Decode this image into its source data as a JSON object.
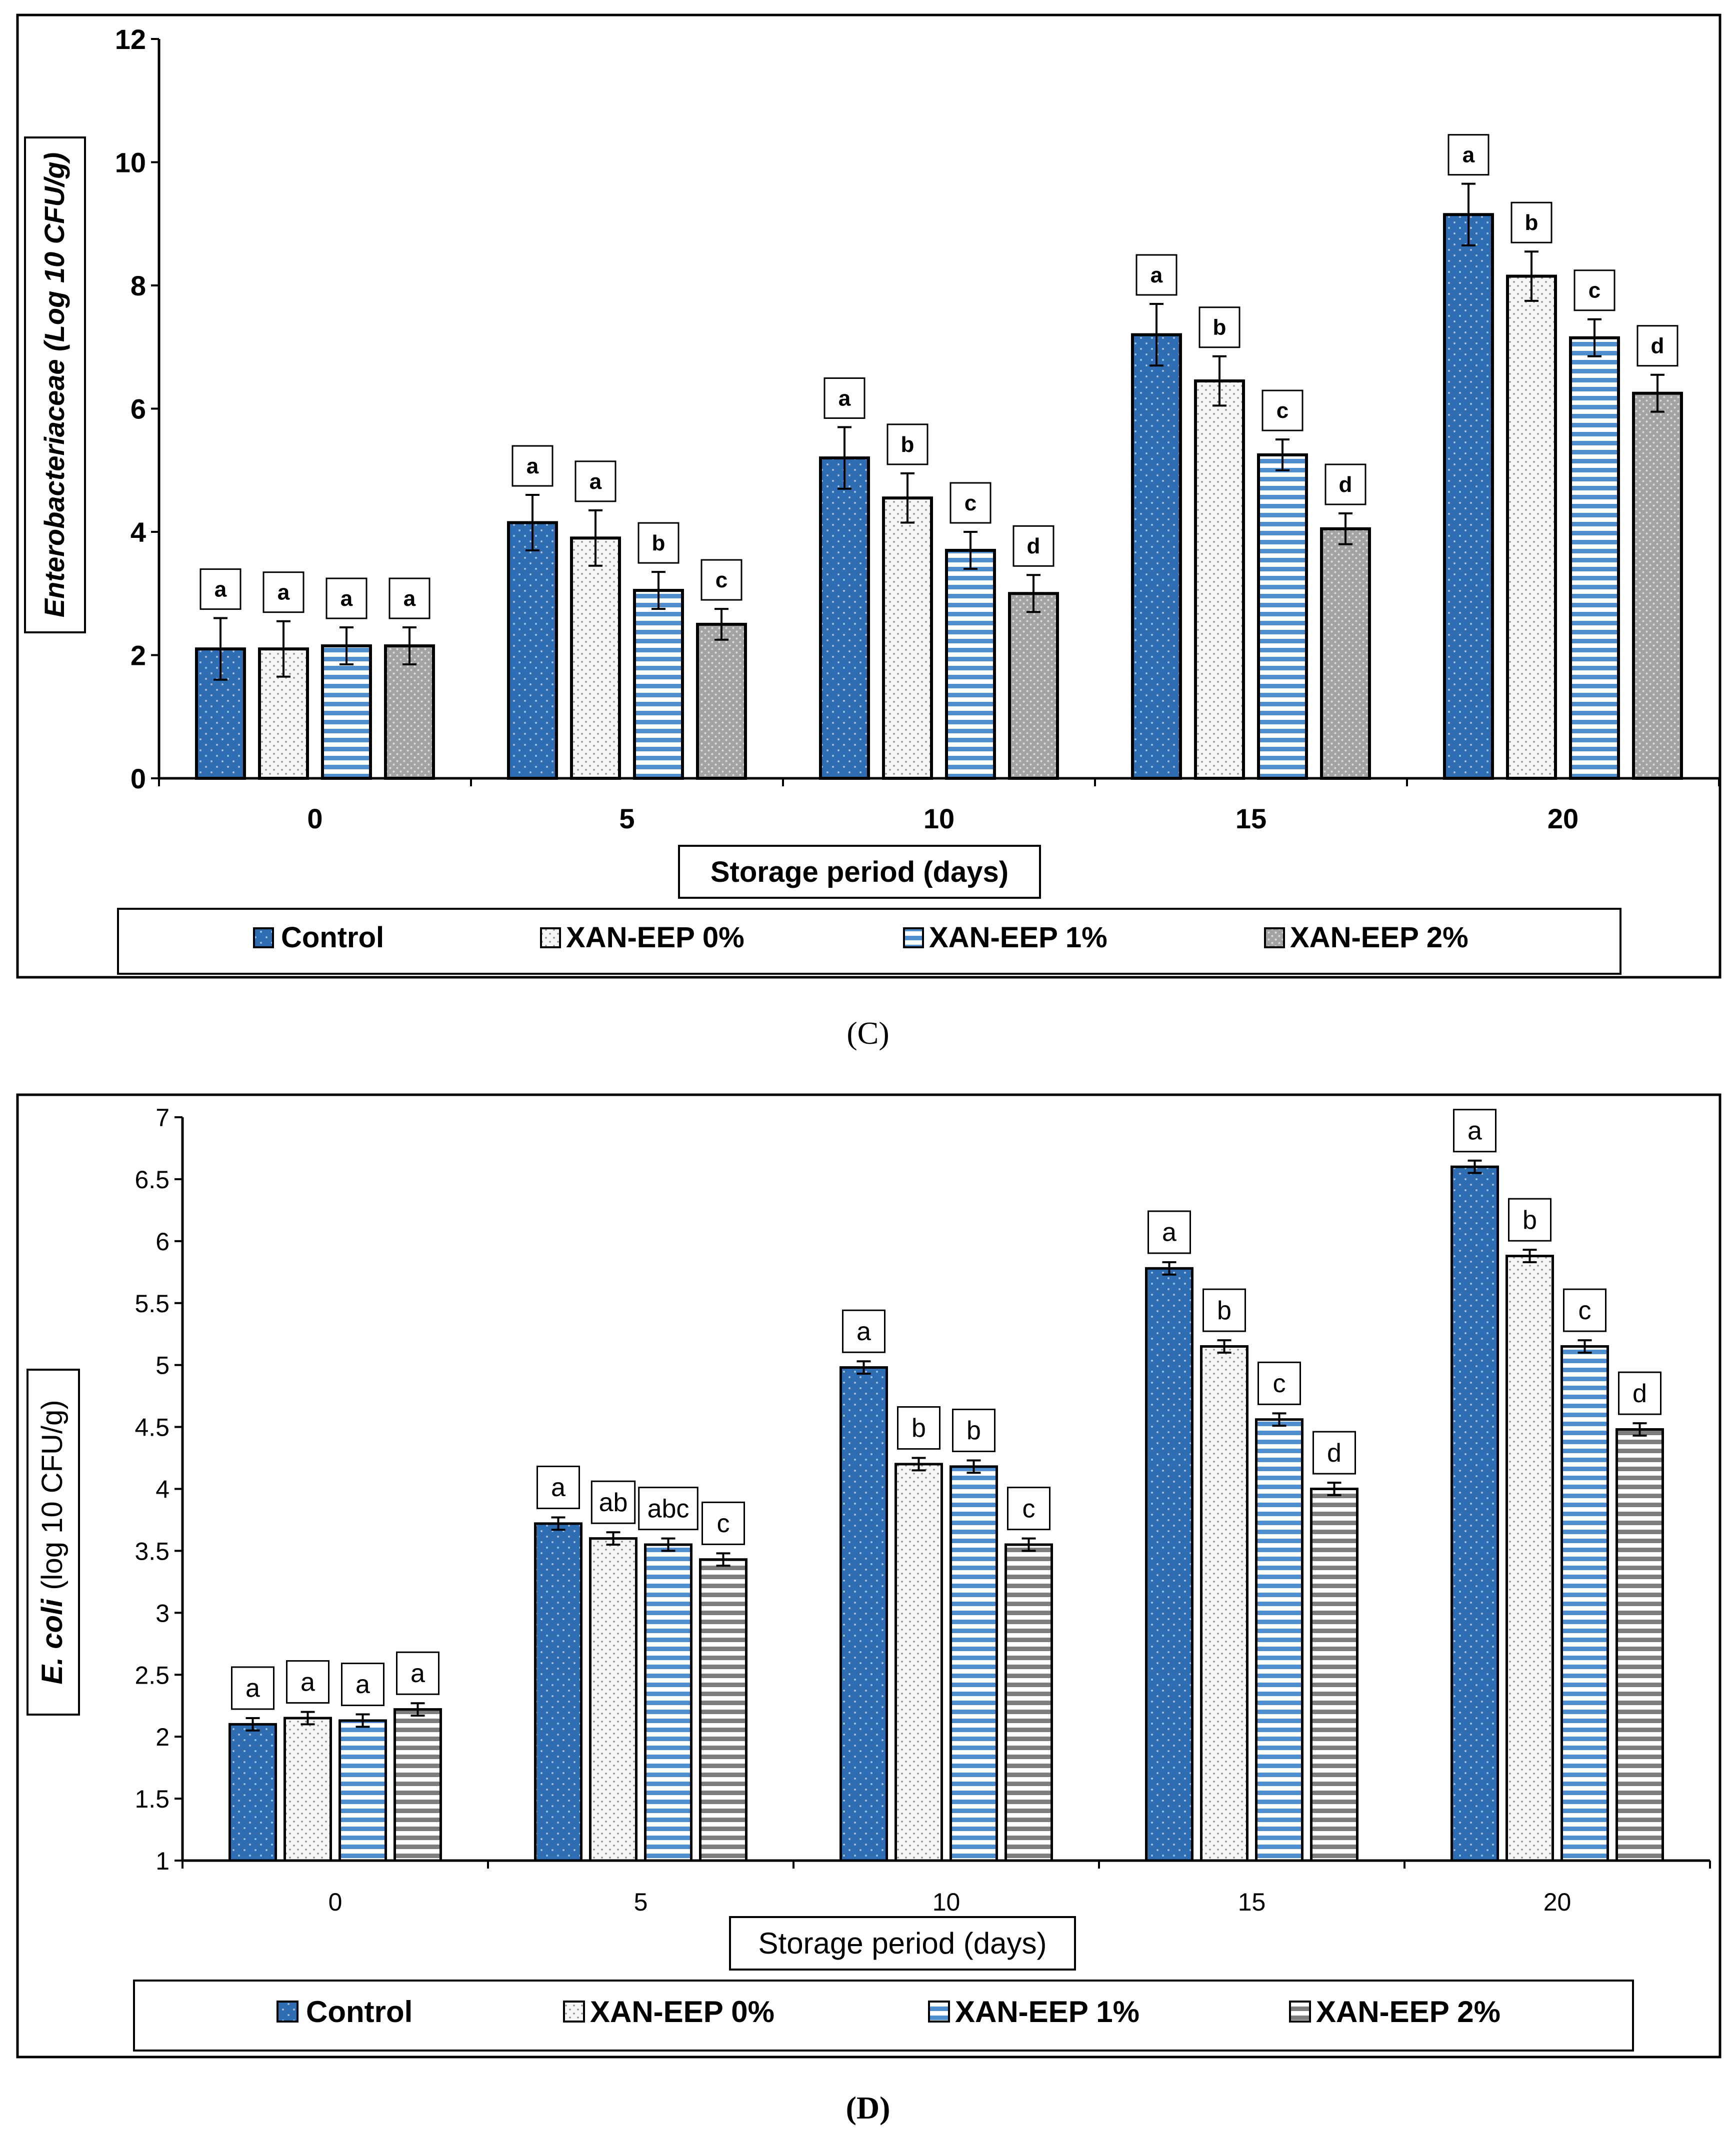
{
  "colors": {
    "control": "#2f6db3",
    "control_dark": "#1b3f6b",
    "xan0": "#f3f3f3",
    "xan1": "#4f8fd0",
    "xan2": "#9c9c9c",
    "axis": "#000000"
  },
  "chart_data": [
    {
      "type": "bar",
      "panel_label": "(C)",
      "ylabel": "Enterobacteriaceae (Log 10 CFU/g)",
      "xlabel": "Storage period (days)",
      "categories": [
        "0",
        "5",
        "10",
        "15",
        "20"
      ],
      "ylim": [
        0,
        12
      ],
      "yticks": [
        "0",
        "2",
        "4",
        "6",
        "8",
        "10",
        "12"
      ],
      "series": [
        {
          "name": "Control",
          "values": [
            2.1,
            4.15,
            5.2,
            7.2,
            9.15
          ],
          "errors": [
            0.5,
            0.45,
            0.5,
            0.5,
            0.5
          ],
          "letters": [
            "a",
            "a",
            "a",
            "a",
            "a"
          ]
        },
        {
          "name": "XAN-EEP 0%",
          "values": [
            2.1,
            3.9,
            4.55,
            6.45,
            8.15
          ],
          "errors": [
            0.45,
            0.45,
            0.4,
            0.4,
            0.4
          ],
          "letters": [
            "a",
            "a",
            "b",
            "b",
            "b"
          ]
        },
        {
          "name": "XAN-EEP 1%",
          "values": [
            2.15,
            3.05,
            3.7,
            5.25,
            7.15
          ],
          "errors": [
            0.3,
            0.3,
            0.3,
            0.25,
            0.3
          ],
          "letters": [
            "a",
            "b",
            "c",
            "c",
            "c"
          ]
        },
        {
          "name": "XAN-EEP 2%",
          "values": [
            2.15,
            2.5,
            3.0,
            4.05,
            6.25
          ],
          "errors": [
            0.3,
            0.25,
            0.3,
            0.25,
            0.3
          ],
          "letters": [
            "a",
            "c",
            "d",
            "d",
            "d"
          ]
        }
      ]
    },
    {
      "type": "bar",
      "panel_label": "(D)",
      "ylabel_italic": "E. coli",
      "ylabel_rest": "(log 10 CFU/g)",
      "xlabel": "Storage period (days)",
      "categories": [
        "0",
        "5",
        "10",
        "15",
        "20"
      ],
      "ylim": [
        1,
        7
      ],
      "yticks": [
        "1",
        "1.5",
        "2",
        "2.5",
        "3",
        "3.5",
        "4",
        "4.5",
        "5",
        "5.5",
        "6",
        "6.5",
        "7"
      ],
      "series": [
        {
          "name": "Control",
          "values": [
            2.1,
            3.72,
            4.98,
            5.78,
            6.6
          ],
          "errors": [
            0.05,
            0.05,
            0.05,
            0.05,
            0.05
          ],
          "letters": [
            "a",
            "a",
            "a",
            "a",
            "a"
          ]
        },
        {
          "name": "XAN-EEP 0%",
          "values": [
            2.15,
            3.6,
            4.2,
            5.15,
            5.88
          ],
          "errors": [
            0.05,
            0.05,
            0.05,
            0.05,
            0.05
          ],
          "letters": [
            "a",
            "ab",
            "b",
            "b",
            "b"
          ]
        },
        {
          "name": "XAN-EEP 1%",
          "values": [
            2.13,
            3.55,
            4.18,
            4.56,
            5.15
          ],
          "errors": [
            0.05,
            0.05,
            0.05,
            0.05,
            0.05
          ],
          "letters": [
            "a",
            "abc",
            "b",
            "c",
            "c"
          ]
        },
        {
          "name": "XAN-EEP 2%",
          "values": [
            2.22,
            3.43,
            3.55,
            4.0,
            4.48
          ],
          "errors": [
            0.05,
            0.05,
            0.05,
            0.05,
            0.05
          ],
          "letters": [
            "a",
            "c",
            "c",
            "d",
            "d"
          ]
        }
      ]
    }
  ]
}
